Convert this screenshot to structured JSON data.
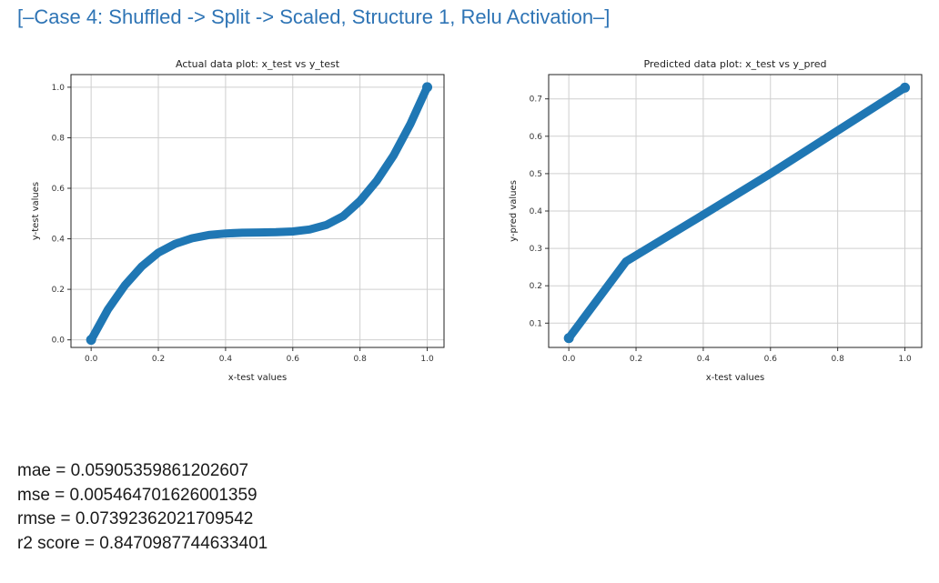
{
  "heading": "[–Case 4: Shuffled -> Split -> Scaled, Structure 1, Relu Activation–]",
  "metrics": [
    "mae = 0.05905359861202607",
    "mse = 0.005464701626001359",
    "rmse = 0.07392362021709542",
    "r2 score = 0.8470987744633401"
  ],
  "colors": {
    "series": "#1f77b4",
    "grid": "#cfcfcf",
    "heading": "#2e74b5"
  },
  "chart_data": [
    {
      "type": "line",
      "title": "Actual data plot: x_test vs y_test",
      "xlabel": "x-test values",
      "ylabel": "y-test values",
      "xlim": [
        -0.06,
        1.05
      ],
      "ylim": [
        -0.03,
        1.05
      ],
      "xticks": [
        0.0,
        0.2,
        0.4,
        0.6,
        0.8,
        1.0
      ],
      "xticklabels": [
        "0.0",
        "0.2",
        "0.4",
        "0.6",
        "0.8",
        "1.0"
      ],
      "yticks": [
        0.0,
        0.2,
        0.4,
        0.6,
        0.8,
        1.0
      ],
      "yticklabels": [
        "0.0",
        "0.2",
        "0.4",
        "0.6",
        "0.8",
        "1.0"
      ],
      "grid": true,
      "series": [
        {
          "x": [
            0.0,
            0.05,
            0.1,
            0.15,
            0.2,
            0.25,
            0.3,
            0.35,
            0.4,
            0.45,
            0.5,
            0.55,
            0.6,
            0.65,
            0.7,
            0.75,
            0.8,
            0.85,
            0.9,
            0.95,
            1.0
          ],
          "y": [
            0.0,
            0.12,
            0.215,
            0.29,
            0.345,
            0.38,
            0.402,
            0.415,
            0.421,
            0.424,
            0.425,
            0.426,
            0.429,
            0.437,
            0.455,
            0.49,
            0.55,
            0.63,
            0.73,
            0.855,
            1.0
          ]
        }
      ]
    },
    {
      "type": "line",
      "title": "Predicted data plot: x_test vs y_pred",
      "xlabel": "x-test values",
      "ylabel": "y-pred values",
      "xlim": [
        -0.06,
        1.05
      ],
      "ylim": [
        0.035,
        0.765
      ],
      "xticks": [
        0.0,
        0.2,
        0.4,
        0.6,
        0.8,
        1.0
      ],
      "xticklabels": [
        "0.0",
        "0.2",
        "0.4",
        "0.6",
        "0.8",
        "1.0"
      ],
      "yticks": [
        0.1,
        0.2,
        0.3,
        0.4,
        0.5,
        0.6,
        0.7
      ],
      "yticklabels": [
        "0.1",
        "0.2",
        "0.3",
        "0.4",
        "0.5",
        "0.6",
        "0.7"
      ],
      "grid": true,
      "series": [
        {
          "x": [
            0.0,
            0.17,
            0.4,
            0.6,
            0.8,
            1.0
          ],
          "y": [
            0.06,
            0.265,
            0.39,
            0.5,
            0.615,
            0.73
          ]
        }
      ]
    }
  ]
}
